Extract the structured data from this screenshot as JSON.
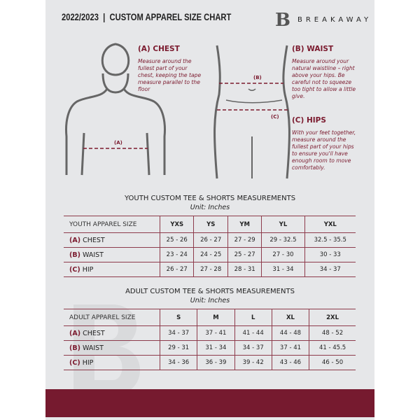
{
  "header": {
    "title": "2022/2023  |  CUSTOM APPAREL SIZE CHART",
    "brand": "BREAKAWAY",
    "logo_letter": "B"
  },
  "guide": {
    "chest": {
      "title": "(A) CHEST",
      "text": "Measure around the fullest part of your chest, keeping the tape measure parallel to the floor",
      "marker": "(A)"
    },
    "waist": {
      "title": "(B) WAIST",
      "text": "Measure around your natural waistline – right above your hips. Be careful not to squeeze too tight to allow a little give.",
      "marker": "(B)"
    },
    "hips": {
      "title": "(C) HIPS",
      "text": "With your feet together, measure around the fullest part of your hips to ensure you'll have enough room to move comfortably.",
      "marker": "(C)"
    }
  },
  "youth": {
    "title": "YOUTH CUSTOM TEE & SHORTS MEASUREMENTS",
    "unit": "Unit: Inches",
    "label_header": "YOUTH APPAREL SIZE",
    "sizes": [
      "YXS",
      "YS",
      "YM",
      "YL",
      "YXL"
    ],
    "rows": [
      {
        "code": "(A)",
        "name": "CHEST",
        "values": [
          "25 - 26",
          "26 - 27",
          "27 - 29",
          "29 - 32.5",
          "32.5 - 35.5"
        ]
      },
      {
        "code": "(B)",
        "name": "WAIST",
        "values": [
          "23 - 24",
          "24 - 25",
          "25 - 27",
          "27 - 30",
          "30 - 33"
        ]
      },
      {
        "code": "(C)",
        "name": "HIP",
        "values": [
          "26 - 27",
          "27 - 28",
          "28 - 31",
          "31 - 34",
          "34 - 37"
        ]
      }
    ]
  },
  "adult": {
    "title": "ADULT CUSTOM TEE & SHORTS MEASUREMENTS",
    "unit": "Unit: Inches",
    "label_header": "ADULT APPAREL SIZE",
    "sizes": [
      "S",
      "M",
      "L",
      "XL",
      "2XL"
    ],
    "rows": [
      {
        "code": "(A)",
        "name": "CHEST",
        "values": [
          "34 - 37",
          "37 - 41",
          "41 - 44",
          "44 - 48",
          "48 - 52"
        ]
      },
      {
        "code": "(B)",
        "name": "WAIST",
        "values": [
          "29 - 31",
          "31 - 34",
          "34 - 37",
          "37 - 41",
          "41 - 45.5"
        ]
      },
      {
        "code": "(C)",
        "name": "HIP",
        "values": [
          "34 - 36",
          "36 - 39",
          "39 - 42",
          "43 - 46",
          "46 - 50"
        ]
      }
    ]
  },
  "colors": {
    "accent": "#761a2f",
    "page": "#e6e7e9"
  }
}
